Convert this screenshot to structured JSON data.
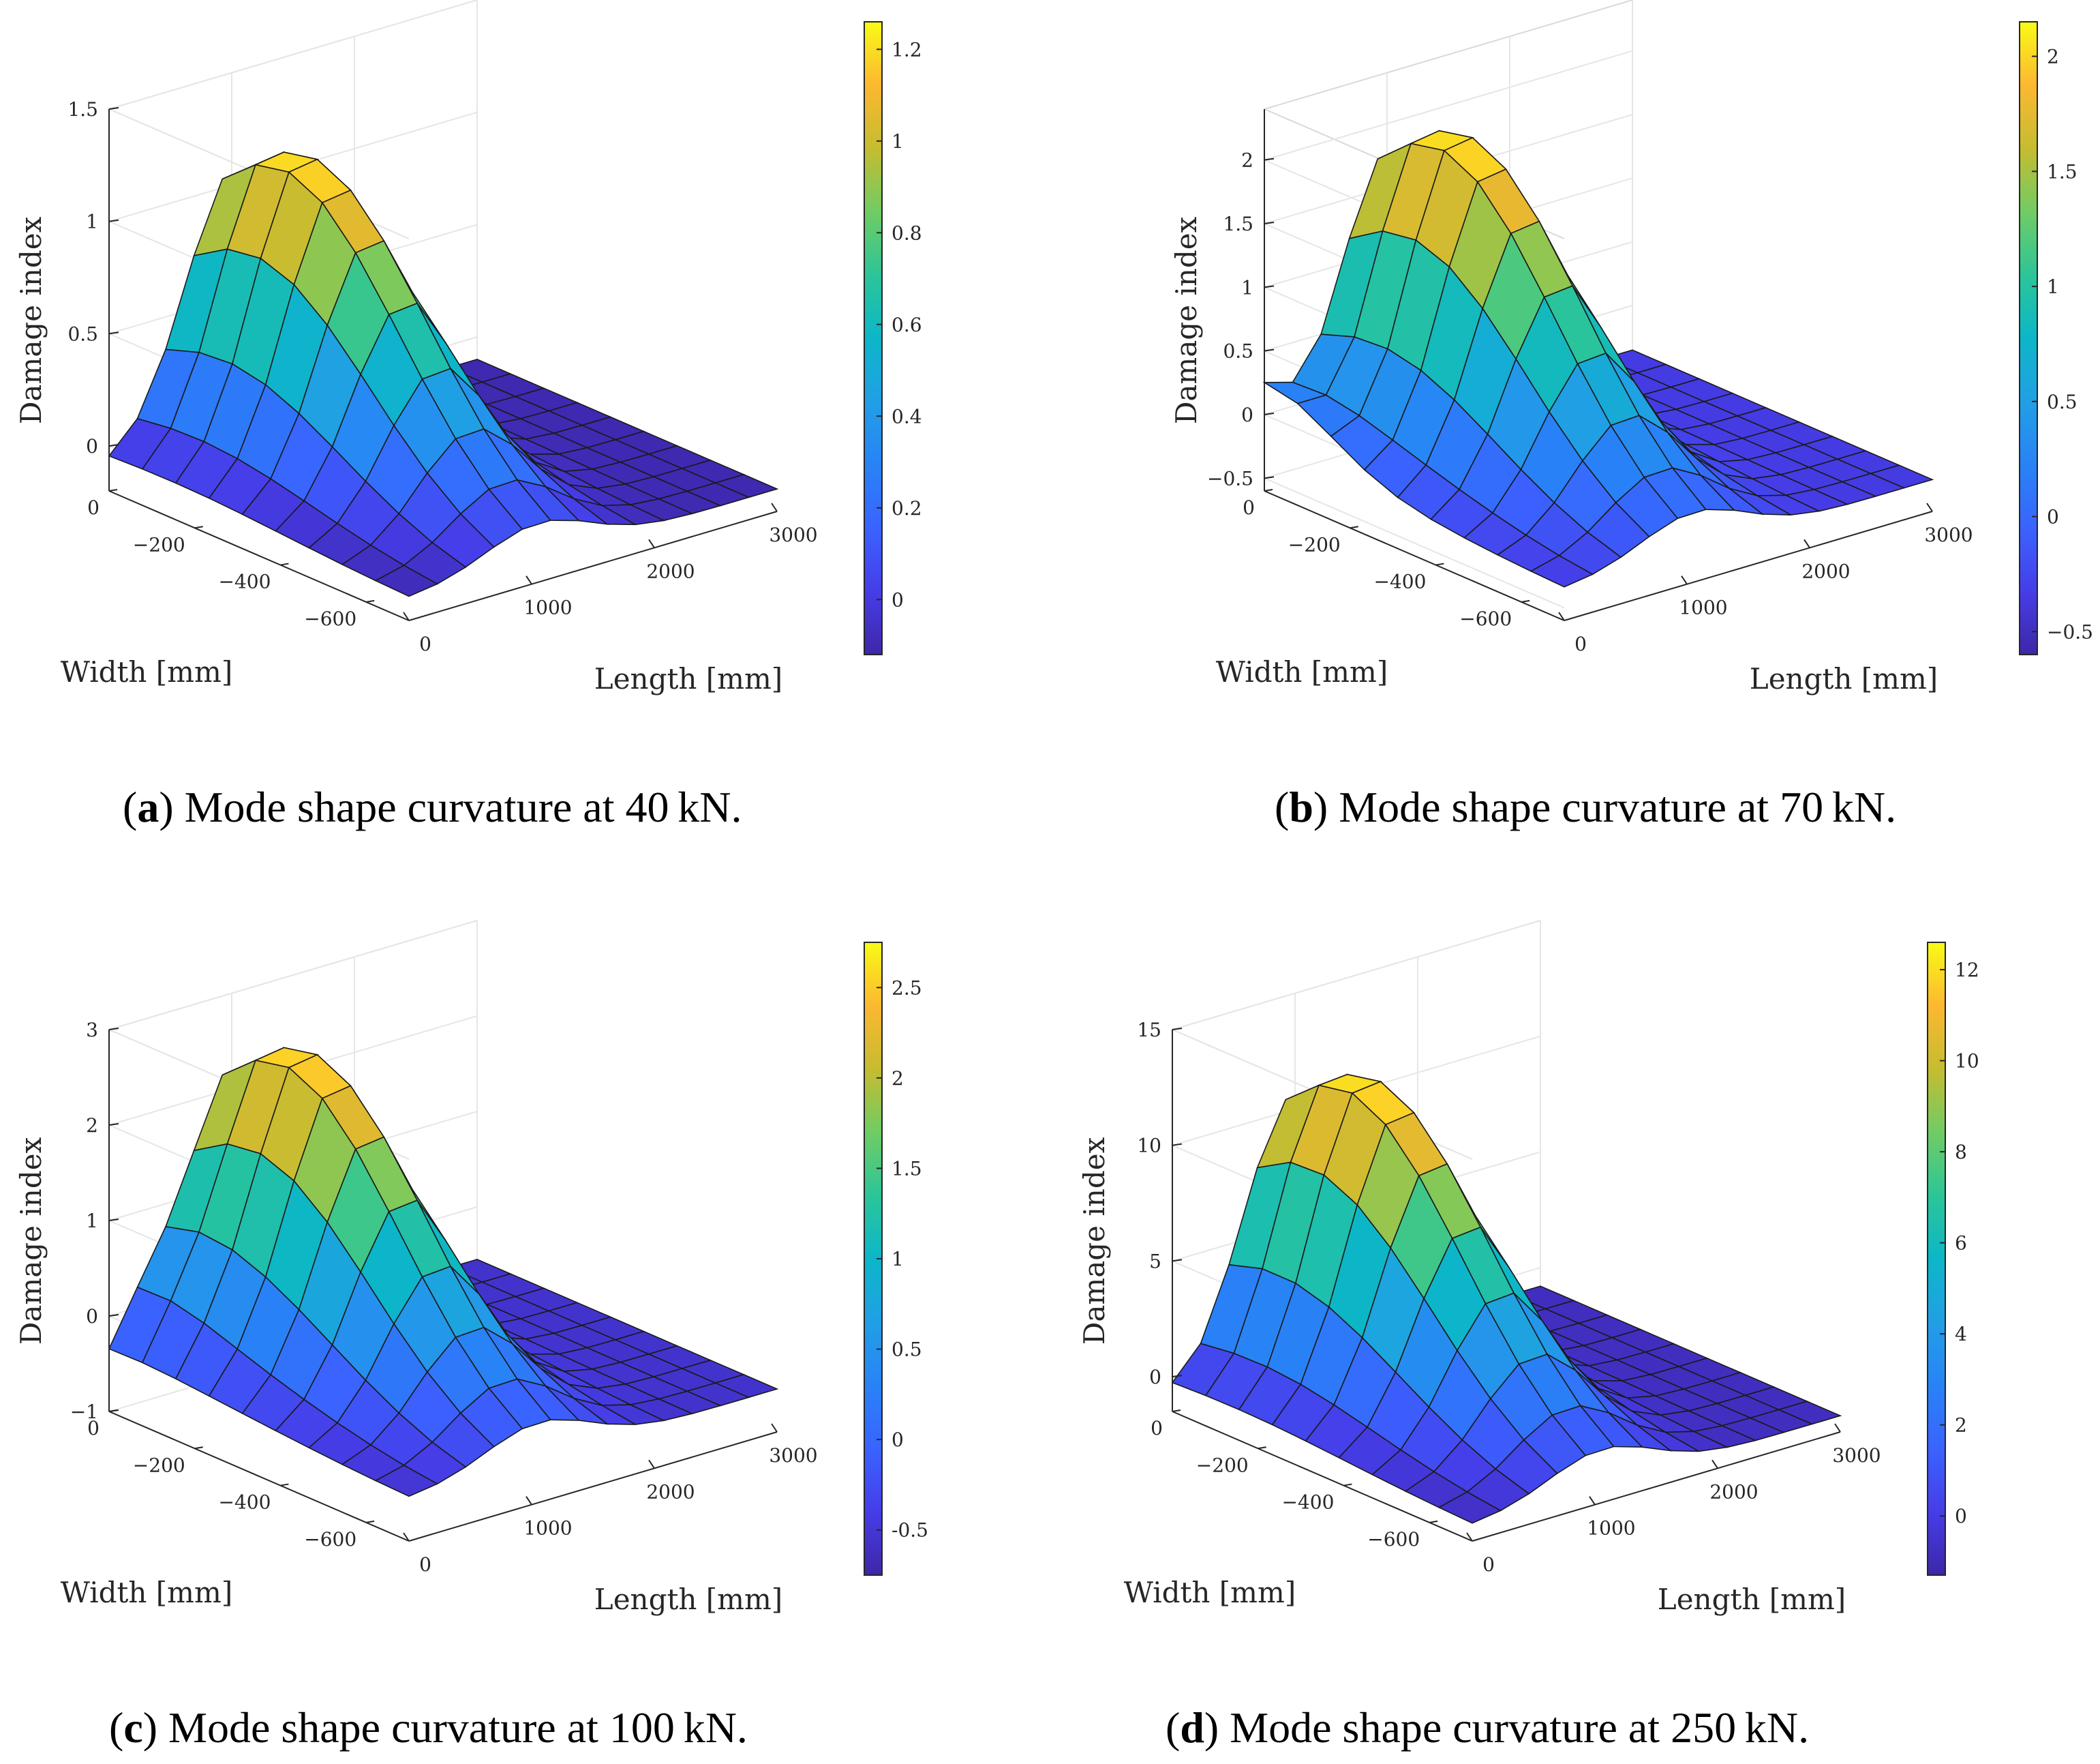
{
  "figure": {
    "panels": [
      {
        "caption": {
          "letter": "a",
          "text": ") Mode shape curvature at 40 kN.",
          "open": "("
        },
        "chart_data": {
          "type": "surface",
          "title": "",
          "xlabel": "Length [mm]",
          "ylabel": "Width [mm]",
          "zlabel": "Damage index",
          "x_ticks": [
            "0",
            "1000",
            "2000",
            "3000"
          ],
          "y_ticks": [
            "0",
            "−200",
            "−400",
            "−600"
          ],
          "z_ticks": [
            "0",
            "0.5",
            "1",
            "1.5"
          ],
          "z_tick_values": [
            0,
            0.5,
            1,
            1.5
          ],
          "zlim": [
            -0.2,
            1.5
          ],
          "colorbar_ticks": [
            "0",
            "0.2",
            "0.4",
            "0.6",
            "0.8",
            "1",
            "1.2"
          ],
          "colorbar_values": [
            0,
            0.2,
            0.4,
            0.6,
            0.8,
            1.0,
            1.2
          ],
          "clim": [
            -0.12,
            1.26
          ],
          "peak": 1.26,
          "base": -0.1,
          "edge_lift": 0.0,
          "edge_lift_pos": 0.2,
          "length_range": [
            0,
            3000
          ],
          "width_range": [
            0,
            -700
          ]
        }
      },
      {
        "caption": {
          "letter": "b",
          "text": ") Mode shape curvature at 70 kN.",
          "open": "("
        },
        "chart_data": {
          "type": "surface",
          "title": "",
          "xlabel": "Length [mm]",
          "ylabel": "Width [mm]",
          "zlabel": "Damage index",
          "x_ticks": [
            "0",
            "1000",
            "2000",
            "3000"
          ],
          "y_ticks": [
            "0",
            "−200",
            "−400",
            "−600"
          ],
          "z_ticks": [
            "−0.5",
            "0",
            "0.5",
            "1",
            "1.5",
            "2"
          ],
          "z_tick_values": [
            -0.5,
            0,
            0.5,
            1,
            1.5,
            2
          ],
          "zlim": [
            -0.6,
            2.4
          ],
          "colorbar_ticks": [
            "−0.5",
            "0",
            "0.5",
            "1",
            "1.5",
            "2"
          ],
          "colorbar_values": [
            -0.5,
            0,
            0.5,
            1,
            1.5,
            2
          ],
          "clim": [
            -0.6,
            2.15
          ],
          "peak": 2.15,
          "base": -0.35,
          "edge_lift": 0.5,
          "edge_lift_pos": 0.0,
          "length_range": [
            0,
            3000
          ],
          "width_range": [
            0,
            -700
          ]
        }
      },
      {
        "caption": {
          "letter": "c",
          "text": ") Mode shape curvature at 100 kN.",
          "open": "("
        },
        "chart_data": {
          "type": "surface",
          "title": "",
          "xlabel": "Length [mm]",
          "ylabel": "Width [mm]",
          "zlabel": "Damage index",
          "x_ticks": [
            "0",
            "1000",
            "2000",
            "3000"
          ],
          "y_ticks": [
            "0",
            "−200",
            "−400",
            "−600"
          ],
          "z_ticks": [
            "−1",
            "0",
            "1",
            "2",
            "3"
          ],
          "z_tick_values": [
            -1,
            0,
            1,
            2,
            3
          ],
          "zlim": [
            -1.0,
            3.0
          ],
          "colorbar_ticks": [
            "-0.5",
            "0",
            "0.5",
            "1",
            "1.5",
            "2",
            "2.5"
          ],
          "colorbar_values": [
            -0.5,
            0,
            0.5,
            1,
            1.5,
            2,
            2.5
          ],
          "clim": [
            -0.75,
            2.75
          ],
          "peak": 2.7,
          "base": -0.55,
          "edge_lift": 0.35,
          "edge_lift_pos": 0.1,
          "length_range": [
            0,
            3000
          ],
          "width_range": [
            0,
            -700
          ]
        }
      },
      {
        "caption": {
          "letter": "d",
          "text": ") Mode shape curvature at 250 kN.",
          "open": "("
        },
        "chart_data": {
          "type": "surface",
          "title": "",
          "xlabel": "Length [mm]",
          "ylabel": "Width [mm]",
          "zlabel": "Damage index",
          "x_ticks": [
            "0",
            "1000",
            "2000",
            "3000"
          ],
          "y_ticks": [
            "0",
            "−200",
            "−400",
            "−600"
          ],
          "z_ticks": [
            "0",
            "5",
            "10",
            "15"
          ],
          "z_tick_values": [
            0,
            5,
            10,
            15
          ],
          "zlim": [
            -1.5,
            15
          ],
          "colorbar_ticks": [
            "0",
            "2",
            "4",
            "6",
            "8",
            "10",
            "12"
          ],
          "colorbar_values": [
            0,
            2,
            4,
            6,
            8,
            10,
            12
          ],
          "clim": [
            -1.3,
            12.6
          ],
          "peak": 12.6,
          "base": -0.8,
          "edge_lift": 0.6,
          "edge_lift_pos": 0.2,
          "length_range": [
            0,
            3000
          ],
          "width_range": [
            0,
            -700
          ]
        }
      }
    ]
  }
}
